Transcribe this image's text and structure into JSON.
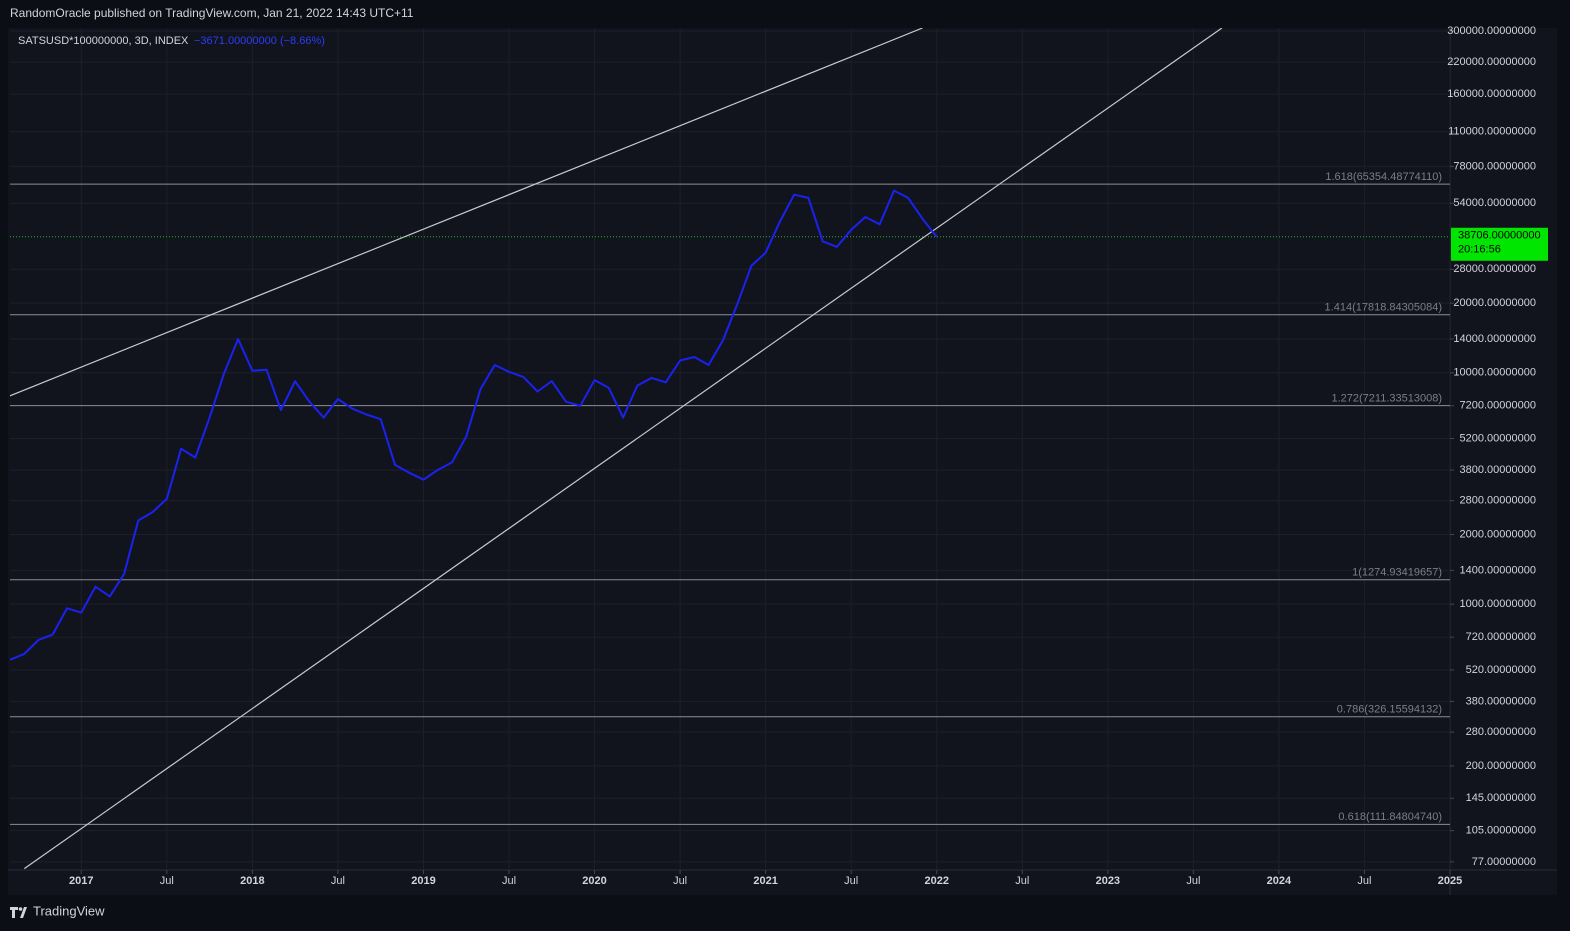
{
  "header": {
    "publisher": "RandomOracle published on TradingView.com, Jan 21, 2022 14:43 UTC+11"
  },
  "footer": {
    "brand": "TradingView"
  },
  "chart_data": {
    "type": "line",
    "symbol": "SATSUSD*100000000, 3D, INDEX",
    "change": "−3671.00000000 (−8.66%)",
    "log_scale": true,
    "grid": true,
    "x": [
      "2016-08",
      "2016-09",
      "2016-10",
      "2016-11",
      "2016-12",
      "2017-01",
      "2017-02",
      "2017-03",
      "2017-04",
      "2017-05",
      "2017-06",
      "2017-07",
      "2017-08",
      "2017-09",
      "2017-10",
      "2017-11",
      "2017-12",
      "2018-01",
      "2018-02",
      "2018-03",
      "2018-04",
      "2018-05",
      "2018-06",
      "2018-07",
      "2018-08",
      "2018-09",
      "2018-10",
      "2018-11",
      "2018-12",
      "2019-01",
      "2019-02",
      "2019-03",
      "2019-04",
      "2019-05",
      "2019-06",
      "2019-07",
      "2019-08",
      "2019-09",
      "2019-10",
      "2019-11",
      "2019-12",
      "2020-01",
      "2020-02",
      "2020-03",
      "2020-04",
      "2020-05",
      "2020-06",
      "2020-07",
      "2020-08",
      "2020-09",
      "2020-10",
      "2020-11",
      "2020-12",
      "2021-01",
      "2021-02",
      "2021-03",
      "2021-04",
      "2021-05",
      "2021-06",
      "2021-07",
      "2021-08",
      "2021-09",
      "2021-10",
      "2021-11",
      "2021-12",
      "2022-01"
    ],
    "series": [
      {
        "color": "#1a22f0",
        "values": [
          575,
          610,
          700,
          740,
          960,
          920,
          1190,
          1080,
          1350,
          2300,
          2500,
          2850,
          4700,
          4300,
          6400,
          9900,
          14000,
          10200,
          10300,
          6900,
          9200,
          7500,
          6400,
          7700,
          7000,
          6600,
          6300,
          4000,
          3700,
          3450,
          3800,
          4100,
          5300,
          8500,
          10800,
          10100,
          9600,
          8300,
          9200,
          7500,
          7200,
          9300,
          8600,
          6400,
          8800,
          9500,
          9100,
          11300,
          11700,
          10800,
          13800,
          19700,
          29000,
          33000,
          45000,
          58800,
          57000,
          37000,
          35000,
          41500,
          47100,
          43800,
          61300,
          57000,
          46300,
          38706
        ]
      }
    ],
    "xlim": [
      "2016-08",
      "2025-01"
    ],
    "ylim": [
      71,
      309000
    ],
    "xticks": [
      {
        "value": "2017-01",
        "label": "2017"
      },
      {
        "value": "2017-07",
        "label": "Jul"
      },
      {
        "value": "2018-01",
        "label": "2018"
      },
      {
        "value": "2018-07",
        "label": "Jul"
      },
      {
        "value": "2019-01",
        "label": "2019"
      },
      {
        "value": "2019-07",
        "label": "Jul"
      },
      {
        "value": "2020-01",
        "label": "2020"
      },
      {
        "value": "2020-07",
        "label": "Jul"
      },
      {
        "value": "2021-01",
        "label": "2021"
      },
      {
        "value": "2021-07",
        "label": "Jul"
      },
      {
        "value": "2022-01",
        "label": "2022"
      },
      {
        "value": "2022-07",
        "label": "Jul"
      },
      {
        "value": "2023-01",
        "label": "2023"
      },
      {
        "value": "2023-07",
        "label": "Jul"
      },
      {
        "value": "2024-01",
        "label": "2024"
      },
      {
        "value": "2024-07",
        "label": "Jul"
      },
      {
        "value": "2025-01",
        "label": "2025"
      }
    ],
    "yticks": [
      {
        "value": 300000,
        "label": "300000.00000000"
      },
      {
        "value": 220000,
        "label": "220000.00000000"
      },
      {
        "value": 160000,
        "label": "160000.00000000"
      },
      {
        "value": 110000,
        "label": "110000.00000000"
      },
      {
        "value": 78000,
        "label": "78000.00000000"
      },
      {
        "value": 54000,
        "label": "54000.00000000"
      },
      {
        "value": 28000,
        "label": "28000.00000000"
      },
      {
        "value": 20000,
        "label": "20000.00000000"
      },
      {
        "value": 14000,
        "label": "14000.00000000"
      },
      {
        "value": 10000,
        "label": "10000.00000000"
      },
      {
        "value": 7200,
        "label": "7200.00000000"
      },
      {
        "value": 5200,
        "label": "5200.00000000"
      },
      {
        "value": 3800,
        "label": "3800.00000000"
      },
      {
        "value": 2800,
        "label": "2800.00000000"
      },
      {
        "value": 2000,
        "label": "2000.00000000"
      },
      {
        "value": 1400,
        "label": "1400.00000000"
      },
      {
        "value": 1000,
        "label": "1000.00000000"
      },
      {
        "value": 720,
        "label": "720.00000000"
      },
      {
        "value": 520,
        "label": "520.00000000"
      },
      {
        "value": 380,
        "label": "380.00000000"
      },
      {
        "value": 280,
        "label": "280.00000000"
      },
      {
        "value": 200,
        "label": "200.00000000"
      },
      {
        "value": 145,
        "label": "145.00000000"
      },
      {
        "value": 105,
        "label": "105.00000000"
      },
      {
        "value": 77,
        "label": "77.00000000"
      }
    ],
    "fib_levels": [
      {
        "value": 65354.4877411,
        "label": "1.618(65354.48774110)"
      },
      {
        "value": 17818.84305084,
        "label": "1.414(17818.84305084)"
      },
      {
        "value": 7211.33513008,
        "label": "1.272(7211.33513008)"
      },
      {
        "value": 1274.93419657,
        "label": "1(1274.93419657)"
      },
      {
        "value": 326.15594132,
        "label": "0.786(326.15594132)"
      },
      {
        "value": 111.8480474,
        "label": "0.618(111.84804740)"
      }
    ],
    "trendlines": [
      {
        "x": [
          "2016-08",
          "2021-12"
        ],
        "y": [
          7950,
          309000
        ]
      },
      {
        "x": [
          "2016-09",
          "2023-09"
        ],
        "y": [
          72,
          309000
        ]
      }
    ],
    "last_price": {
      "value": 38706,
      "label": "38706.00000000"
    },
    "countdown": "20:16:56"
  }
}
